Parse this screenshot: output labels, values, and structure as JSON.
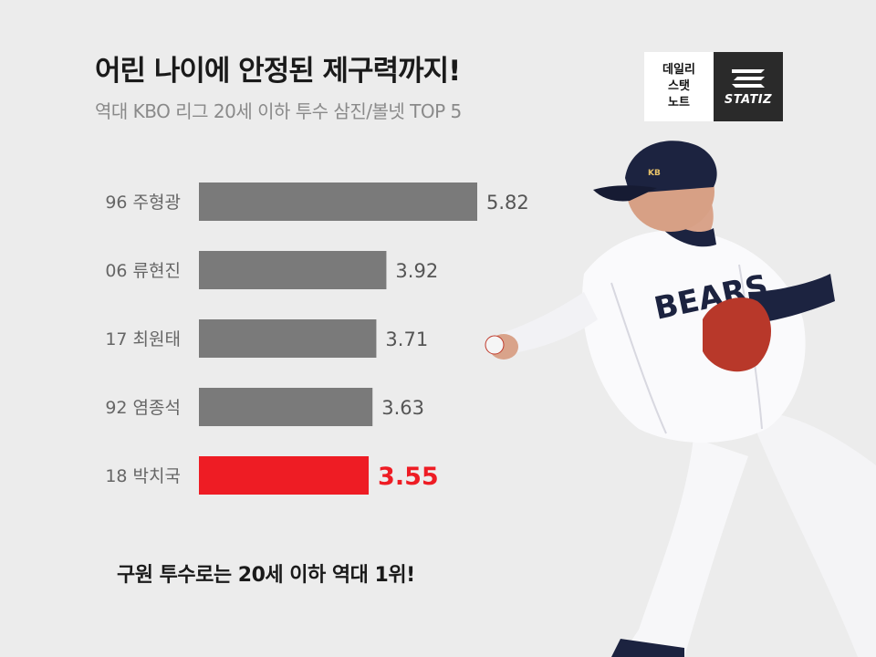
{
  "title": "어린 나이에 안정된 제구력까지!",
  "subtitle": "역대 KBO 리그 20세 이하 투수 삼진/볼넷 TOP 5",
  "logo": {
    "line1": "데일리",
    "line2": "스탯",
    "line3": "노트",
    "brand": "STATIZ"
  },
  "caption": "구원 투수로는 20세 이하 역대 1위!",
  "player_jersey_text": "BEARS",
  "colors": {
    "background": "#ececec",
    "bar_default": "#7a7a7a",
    "bar_highlight": "#ee1c24",
    "label_text": "#666666",
    "value_text": "#555555",
    "highlight_text": "#ee1c24"
  },
  "chart_data": {
    "type": "bar",
    "orientation": "horizontal",
    "categories": [
      "96 주형광",
      "06 류현진",
      "17 최원태",
      "92 염종석",
      "18 박치국"
    ],
    "values": [
      5.82,
      3.92,
      3.71,
      3.63,
      3.55
    ],
    "value_labels": [
      "5.82",
      "3.92",
      "3.71",
      "3.63",
      "3.55"
    ],
    "highlight_index": 4,
    "xlim": [
      0,
      5.82
    ],
    "grid": false,
    "legend": "none"
  }
}
